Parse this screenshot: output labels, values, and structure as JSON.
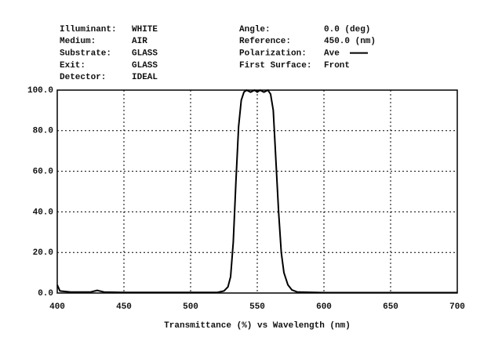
{
  "chart_data": {
    "type": "line",
    "info_left": [
      {
        "label": "Illuminant:",
        "value": "WHITE"
      },
      {
        "label": "Medium:",
        "value": "AIR"
      },
      {
        "label": "Substrate:",
        "value": "GLASS"
      },
      {
        "label": "Exit:",
        "value": "GLASS"
      },
      {
        "label": "Detector:",
        "value": "IDEAL"
      }
    ],
    "info_right": [
      {
        "label": "Angle:",
        "value": "0.0 (deg)"
      },
      {
        "label": "Reference:",
        "value": "450.0 (nm)"
      },
      {
        "label": "Polarization:",
        "value": "Ave"
      },
      {
        "label": "First Surface:",
        "value": "Front"
      }
    ],
    "x_label": "Transmittance (%)  vs  Wavelength (nm)",
    "x": [
      400,
      402,
      410,
      425,
      430,
      435,
      450,
      500,
      520,
      525,
      528,
      530,
      532,
      534,
      536,
      538,
      540,
      542,
      545,
      548,
      550,
      552,
      555,
      558,
      560,
      562,
      564,
      566,
      568,
      570,
      573,
      576,
      580,
      600,
      700
    ],
    "series": [
      {
        "color": "#000000",
        "values": [
          4,
          1,
          0.5,
          0.5,
          1.3,
          0.5,
          0.3,
          0.3,
          0.3,
          1,
          3,
          8,
          25,
          55,
          82,
          95,
          99,
          100,
          99,
          100,
          99,
          100,
          99,
          100,
          98,
          90,
          65,
          40,
          20,
          10,
          4,
          1.5,
          0.5,
          0.2,
          0.2
        ]
      }
    ],
    "xlim": [
      400,
      700
    ],
    "xticks": [
      400,
      450,
      500,
      550,
      600,
      650,
      700
    ],
    "ylim": [
      0,
      100
    ],
    "yticks": [
      {
        "value": 0,
        "label": "0.0"
      },
      {
        "value": 20,
        "label": "20.0"
      },
      {
        "value": 40,
        "label": "40.0"
      },
      {
        "value": 60,
        "label": "60.0"
      },
      {
        "value": 80,
        "label": "80.0"
      },
      {
        "value": 100,
        "label": "100.0"
      }
    ],
    "grid": true
  }
}
